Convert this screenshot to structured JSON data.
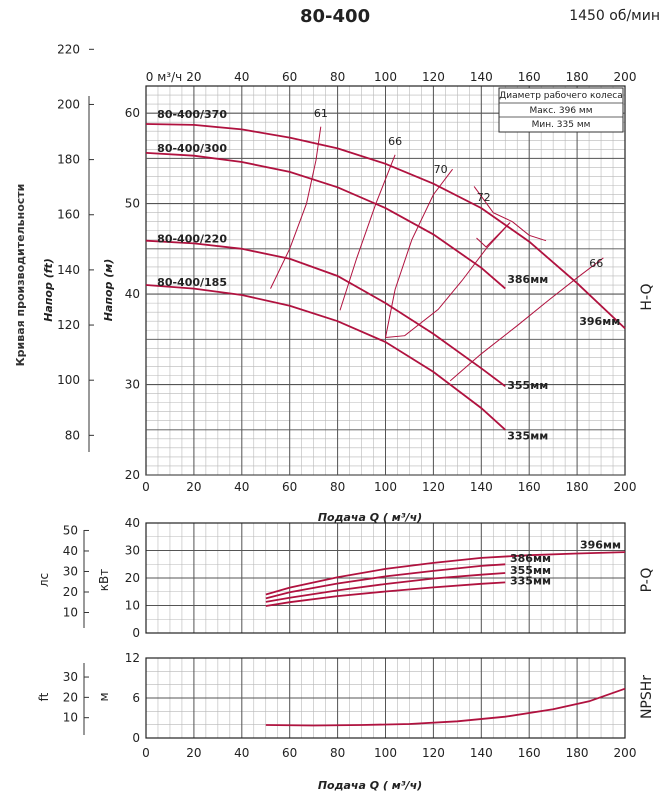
{
  "title": "80-400",
  "speed": "1450 об/мин",
  "colors": {
    "curve": "#b0123f",
    "grid": "#555555",
    "minor": "#b8b8b8"
  },
  "chart_data": [
    {
      "id": "hq",
      "type": "line",
      "ylabel_side": "H-Q",
      "top_axis_ticks": [
        "0 м³/ч",
        "20",
        "40",
        "60",
        "80",
        "100",
        "120",
        "140",
        "160",
        "180",
        "200"
      ],
      "x_ticks": [
        "0",
        "20",
        "40",
        "60",
        "80",
        "100",
        "120",
        "140",
        "160",
        "180",
        "200"
      ],
      "xlabel": "Подача Q ( м³/ч)",
      "ylabel_m": "Напор (м)",
      "ylabel_ft": "Напор (ft)",
      "ylabel_rotated": "Кривая производительности",
      "ylim": [
        20,
        63
      ],
      "xlim": [
        0,
        200
      ],
      "y_ticks_m": [
        "20",
        "30",
        "40",
        "50",
        "60"
      ],
      "y_ticks_ft": [
        "80",
        "100",
        "120",
        "140",
        "160",
        "180",
        "200",
        "220"
      ],
      "legend": {
        "title": "Диаметр рабочего колеса",
        "max": "Макс. 396  мм",
        "min": "Мин.  335  мм"
      },
      "series": [
        {
          "name": "396мм",
          "x": [
            0,
            20,
            40,
            60,
            80,
            100,
            120,
            140,
            160,
            180,
            200
          ],
          "y": [
            58.8,
            58.7,
            58.2,
            57.3,
            56.1,
            54.4,
            52.2,
            49.5,
            45.8,
            41.2,
            36.2
          ]
        },
        {
          "name": "386мм",
          "x": [
            0,
            20,
            40,
            60,
            80,
            100,
            120,
            140,
            150
          ],
          "y": [
            55.6,
            55.3,
            54.6,
            53.5,
            51.8,
            49.5,
            46.6,
            42.9,
            40.6
          ]
        },
        {
          "name": "355мм",
          "x": [
            0,
            20,
            40,
            60,
            80,
            100,
            120,
            140,
            150
          ],
          "y": [
            45.9,
            45.6,
            45.0,
            43.9,
            42.0,
            39.0,
            35.6,
            31.8,
            29.8
          ]
        },
        {
          "name": "335мм",
          "x": [
            0,
            20,
            40,
            60,
            80,
            100,
            120,
            140,
            150
          ],
          "y": [
            41.0,
            40.6,
            39.9,
            38.7,
            37.0,
            34.7,
            31.4,
            27.4,
            25.0
          ]
        }
      ],
      "curve_labels": [
        "80-400/370",
        "80-400/300",
        "80-400/220",
        "80-400/185"
      ],
      "efficiency_labels": [
        "61",
        "66",
        "70",
        "72",
        "66"
      ],
      "efficiency_lines": [
        {
          "label": "61",
          "x": [
            52,
            60,
            67,
            71,
            73
          ],
          "y": [
            40.6,
            45.0,
            50.0,
            54.8,
            58.5
          ]
        },
        {
          "label": "66",
          "x": [
            81,
            88,
            96,
            104
          ],
          "y": [
            38.2,
            44.0,
            50.0,
            55.4
          ]
        },
        {
          "label": "66",
          "x": [
            100,
            104,
            111,
            120,
            128
          ],
          "y": [
            35.2,
            40.5,
            46.0,
            51.0,
            53.8
          ]
        },
        {
          "label": "70",
          "x": [
            100,
            108,
            122,
            132,
            142,
            152
          ],
          "y": [
            35.2,
            35.4,
            38.3,
            41.5,
            45.0,
            47.9
          ]
        },
        {
          "label": "72",
          "x": [
            138,
            142,
            152
          ],
          "y": [
            46.2,
            45.2,
            47.9
          ]
        },
        {
          "label": "",
          "x": [
            127,
            140,
            155,
            168,
            180,
            191
          ],
          "y": [
            30.4,
            33.4,
            36.5,
            39.3,
            41.8,
            44.0
          ]
        },
        {
          "label": "",
          "x": [
            137,
            145,
            153,
            160,
            167
          ],
          "y": [
            51.9,
            49.0,
            48.0,
            46.5,
            45.9
          ]
        }
      ]
    },
    {
      "id": "pq",
      "type": "line",
      "ylabel_side": "P-Q",
      "ylabel_kw": "кВт",
      "ylabel_hp": "лс",
      "ylim": [
        0,
        40
      ],
      "xlim": [
        0,
        200
      ],
      "y_ticks_kw": [
        "0",
        "10",
        "20",
        "30",
        "40"
      ],
      "y_ticks_hp": [
        "10",
        "20",
        "30",
        "40",
        "50"
      ],
      "series": [
        {
          "name": "396мм",
          "x": [
            50,
            60,
            80,
            100,
            120,
            140,
            160,
            180,
            200
          ],
          "y": [
            14.0,
            16.5,
            20.3,
            23.3,
            25.5,
            27.3,
            28.3,
            28.9,
            29.4
          ]
        },
        {
          "name": "386мм",
          "x": [
            50,
            60,
            80,
            100,
            120,
            140,
            150
          ],
          "y": [
            12.6,
            14.8,
            18.0,
            20.6,
            22.6,
            24.4,
            25.0
          ]
        },
        {
          "name": "355мм",
          "x": [
            50,
            60,
            80,
            100,
            120,
            140,
            150
          ],
          "y": [
            11.3,
            12.8,
            15.5,
            17.8,
            19.8,
            21.2,
            21.8
          ]
        },
        {
          "name": "335мм",
          "x": [
            50,
            60,
            80,
            100,
            120,
            140,
            150
          ],
          "y": [
            9.8,
            11.2,
            13.4,
            15.1,
            16.6,
            17.9,
            18.4
          ]
        }
      ]
    },
    {
      "id": "npsh",
      "type": "line",
      "ylabel_side": "NPSHr",
      "ylabel_m": "м",
      "ylabel_ft": "ft",
      "xlabel": "Подача Q ( м³/ч)",
      "ylim": [
        0,
        12
      ],
      "xlim": [
        0,
        200
      ],
      "y_ticks_m": [
        "0",
        "6",
        "12"
      ],
      "y_ticks_ft": [
        "10",
        "20",
        "30"
      ],
      "series": [
        {
          "name": "NPSHr",
          "x": [
            50,
            70,
            90,
            110,
            130,
            150,
            170,
            185,
            200
          ],
          "y": [
            1.95,
            1.88,
            1.95,
            2.1,
            2.5,
            3.2,
            4.3,
            5.5,
            7.4
          ]
        }
      ]
    }
  ]
}
